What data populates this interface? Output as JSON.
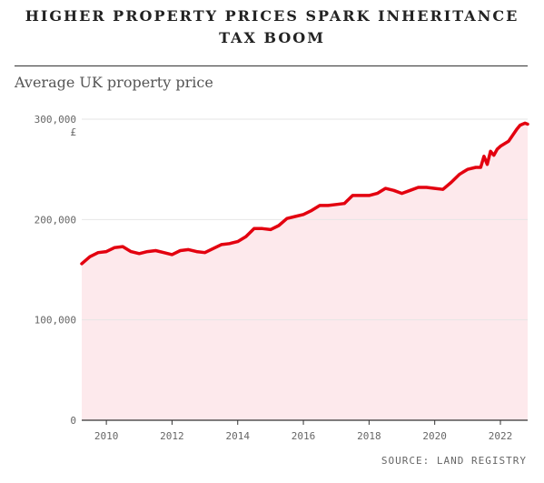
{
  "header": {
    "title_line1": "HIGHER PROPERTY PRICES SPARK INHERITANCE",
    "title_line2": "TAX BOOM",
    "subtitle": "Average UK property price",
    "source": "SOURCE: LAND REGISTRY"
  },
  "colors": {
    "line": "#e3000f",
    "fill": "#fde9ec",
    "grid": "#e6e6e6",
    "axis": "#333333"
  },
  "chart_data": {
    "type": "area",
    "title": "HIGHER PROPERTY PRICES SPARK INHERITANCE TAX BOOM",
    "subtitle": "Average UK property price",
    "xlabel": "",
    "ylabel": "£",
    "xlim": [
      2009.25,
      2022.83
    ],
    "ylim": [
      0,
      300000
    ],
    "y_ticks": [
      0,
      100000,
      200000,
      300000
    ],
    "y_tick_labels": [
      "0",
      "100,000",
      "200,000",
      "300,000"
    ],
    "y_unit_label": "£",
    "x_ticks": [
      2010,
      2012,
      2014,
      2016,
      2018,
      2020,
      2022
    ],
    "x_tick_labels": [
      "2010",
      "2012",
      "2014",
      "2016",
      "2018",
      "2020",
      "2022"
    ],
    "grid": "horizontal",
    "series": [
      {
        "x": [
          2009.25,
          2009.5,
          2009.75,
          2010.0,
          2010.25,
          2010.5,
          2010.75,
          2011.0,
          2011.25,
          2011.5,
          2011.75,
          2012.0,
          2012.25,
          2012.5,
          2012.75,
          2013.0,
          2013.25,
          2013.5,
          2013.75,
          2014.0,
          2014.25,
          2014.5,
          2014.75,
          2015.0,
          2015.25,
          2015.5,
          2015.75,
          2016.0,
          2016.25,
          2016.5,
          2016.75,
          2017.0,
          2017.25,
          2017.5,
          2017.75,
          2018.0,
          2018.25,
          2018.5,
          2018.75,
          2019.0,
          2019.25,
          2019.5,
          2019.75,
          2020.0,
          2020.25,
          2020.5,
          2020.75,
          2021.0,
          2021.25,
          2021.4,
          2021.5,
          2021.6,
          2021.7,
          2021.8,
          2021.9,
          2022.0,
          2022.25,
          2022.5,
          2022.6,
          2022.75,
          2022.83
        ],
        "y": [
          156000,
          163000,
          167000,
          168000,
          172000,
          173000,
          168000,
          166000,
          168000,
          169000,
          167000,
          165000,
          169000,
          170000,
          168000,
          167000,
          171000,
          175000,
          176000,
          178000,
          183000,
          191000,
          191000,
          190000,
          194000,
          201000,
          203000,
          205000,
          209000,
          214000,
          214000,
          215000,
          216000,
          224000,
          224000,
          224000,
          226000,
          231000,
          229000,
          226000,
          229000,
          232000,
          232000,
          231000,
          230000,
          237000,
          245000,
          250000,
          252000,
          252000,
          263000,
          255000,
          268000,
          264000,
          270000,
          273000,
          278000,
          290000,
          294000,
          296000,
          295000
        ]
      }
    ]
  }
}
